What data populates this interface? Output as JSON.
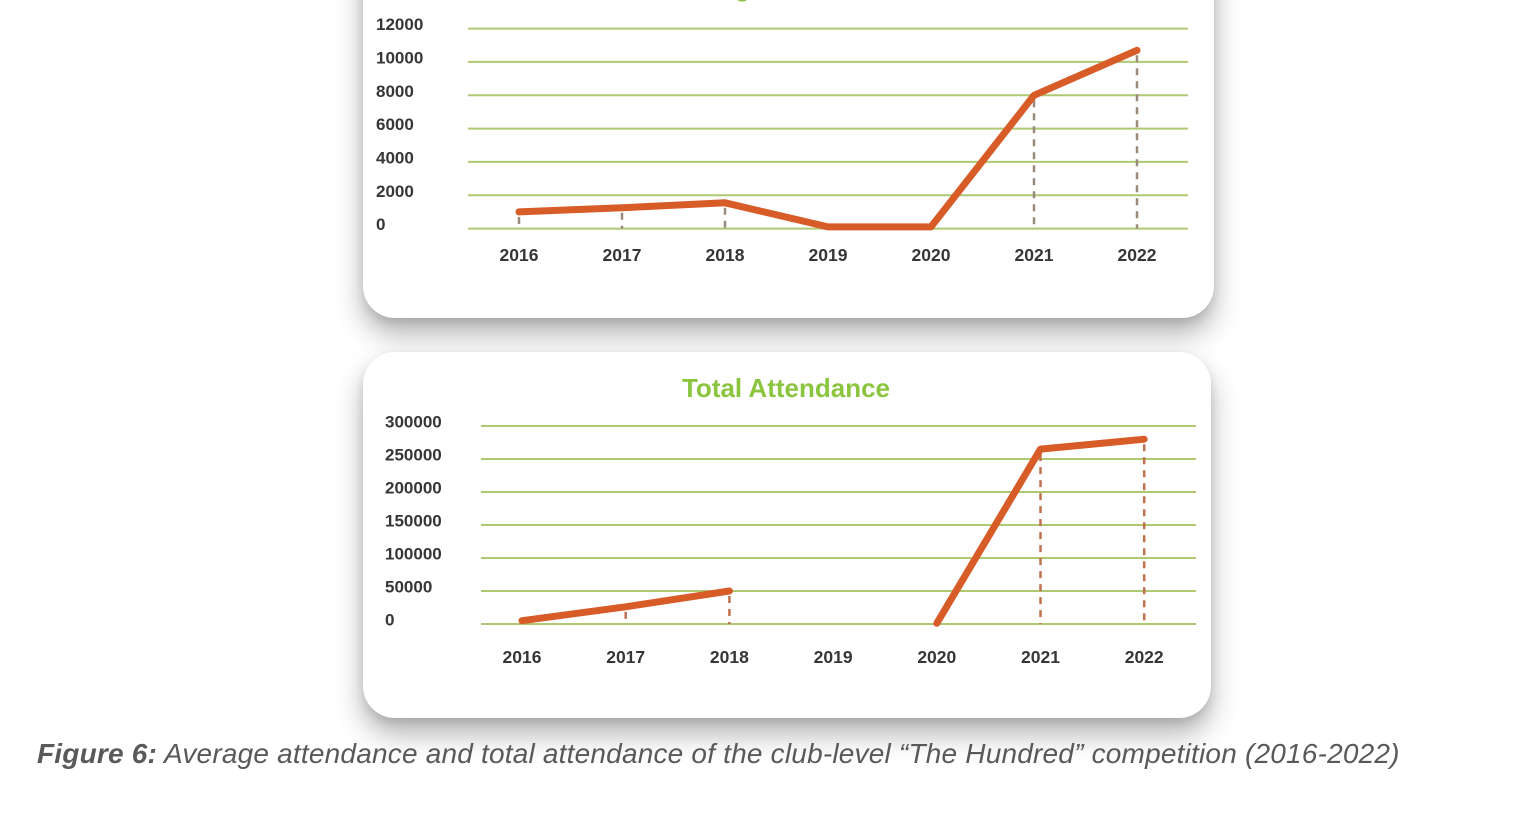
{
  "figure": {
    "caption_prefix": "Figure 6:",
    "caption_text": " Average attendance and total attendance of the club-level “The Hundred” competition (2016-2022)"
  },
  "style": {
    "grid_color": "#aec972",
    "title_color": "#8bc53f",
    "tick_label_color": "#363636",
    "background": "#ffffff"
  },
  "chart_data": [
    {
      "type": "line",
      "title": "Average Attendance",
      "categories": [
        "2016",
        "2017",
        "2018",
        "2019",
        "2020",
        "2021",
        "2022"
      ],
      "values": [
        1000,
        1250,
        1550,
        100,
        100,
        8000,
        10700
      ],
      "xlabel": "",
      "ylabel": "",
      "ylim": [
        0,
        12000
      ],
      "y_ticks": [
        0,
        2000,
        4000,
        6000,
        8000,
        10000,
        12000
      ],
      "grid": true,
      "legend": false,
      "line_color": "#d85c28",
      "dropline_color": "#9a8a7a"
    },
    {
      "type": "line",
      "title": "Total Attendance",
      "categories": [
        "2016",
        "2017",
        "2018",
        "2019",
        "2020",
        "2021",
        "2022"
      ],
      "values": [
        5000,
        26000,
        50000,
        null,
        1000,
        265000,
        280000
      ],
      "xlabel": "",
      "ylabel": "",
      "ylim": [
        0,
        300000
      ],
      "y_ticks": [
        0,
        50000,
        100000,
        150000,
        200000,
        250000,
        300000
      ],
      "grid": true,
      "legend": false,
      "line_color": "#d85c28",
      "dropline_color": "#c0714e"
    }
  ]
}
